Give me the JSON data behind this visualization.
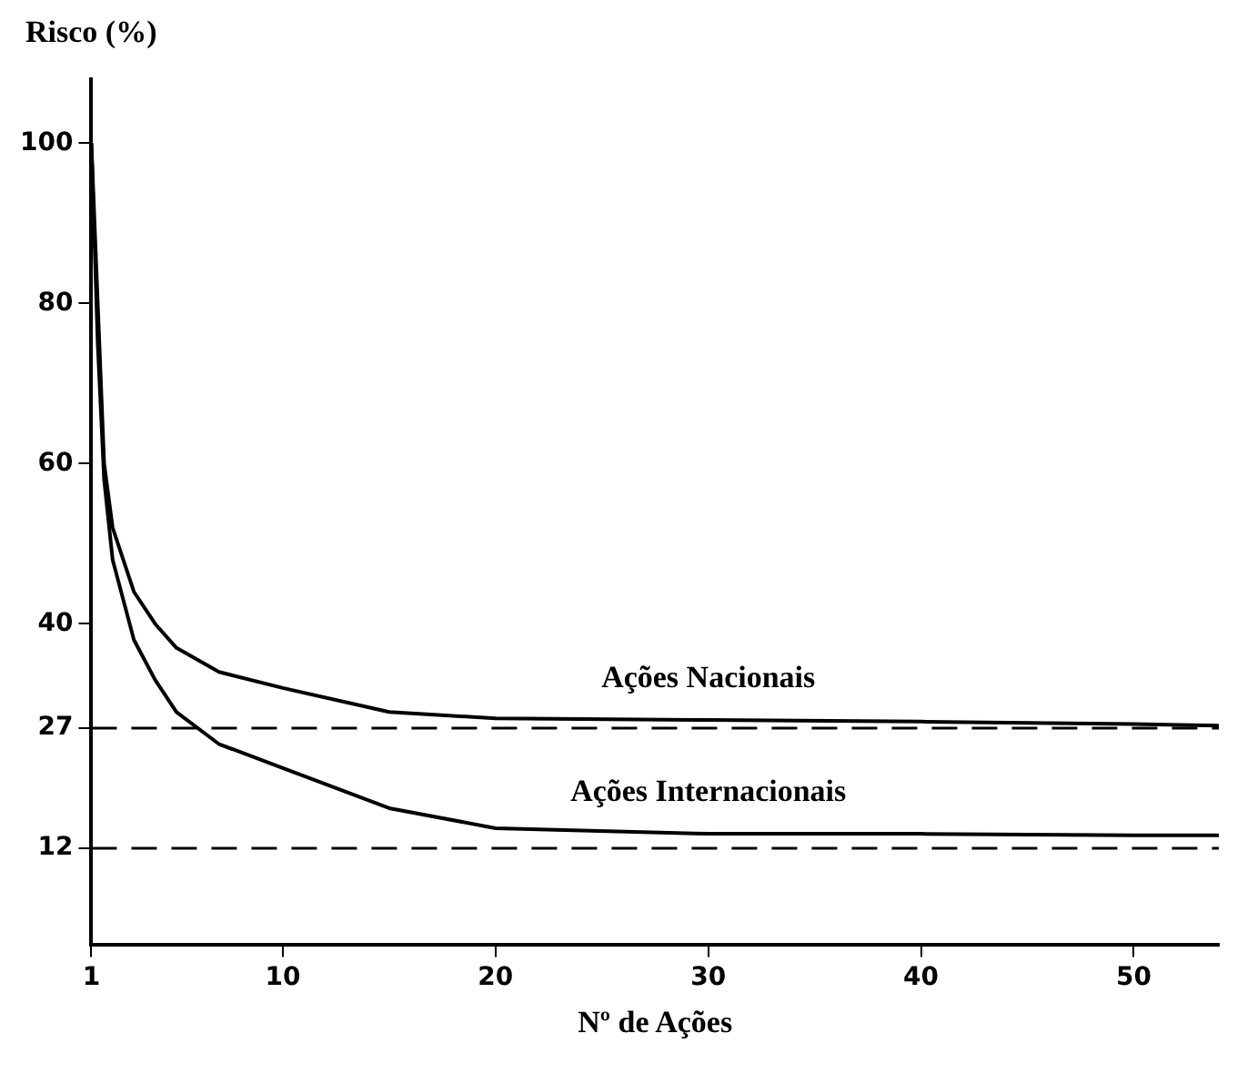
{
  "chart_data": {
    "type": "line",
    "ylabel": "Risco (%)",
    "xlabel": "Nº de Ações",
    "xlim": [
      1,
      54
    ],
    "xticks": [
      1,
      10,
      20,
      30,
      40,
      50
    ],
    "ylim": [
      0,
      108
    ],
    "yticks": [
      12,
      27,
      40,
      60,
      80,
      100
    ],
    "grid": false,
    "legend": false,
    "marker": "none",
    "line_style": "solid",
    "series": [
      {
        "name": "Ações Nacionais",
        "color": "#000000",
        "x": [
          1,
          1.3,
          1.6,
          2,
          3,
          4,
          5,
          7,
          10,
          15,
          20,
          30,
          40,
          50,
          54
        ],
        "values": [
          100,
          80,
          60,
          52,
          44,
          40,
          37,
          34,
          32,
          29,
          28.2,
          28,
          27.8,
          27.5,
          27.3
        ]
      },
      {
        "name": "Ações Internacionais",
        "color": "#000000",
        "x": [
          1,
          1.3,
          1.6,
          2,
          3,
          4,
          5,
          7,
          10,
          15,
          20,
          30,
          40,
          50,
          54
        ],
        "values": [
          100,
          75,
          58,
          48,
          38,
          33,
          29,
          25,
          22,
          17,
          14.5,
          13.8,
          13.8,
          13.6,
          13.6
        ]
      }
    ],
    "ref_lines": [
      {
        "axis": "y",
        "value": 27,
        "color": "#000000",
        "line_style": "dashed"
      },
      {
        "axis": "y",
        "value": 12,
        "color": "#000000",
        "line_style": "dashed"
      }
    ]
  }
}
